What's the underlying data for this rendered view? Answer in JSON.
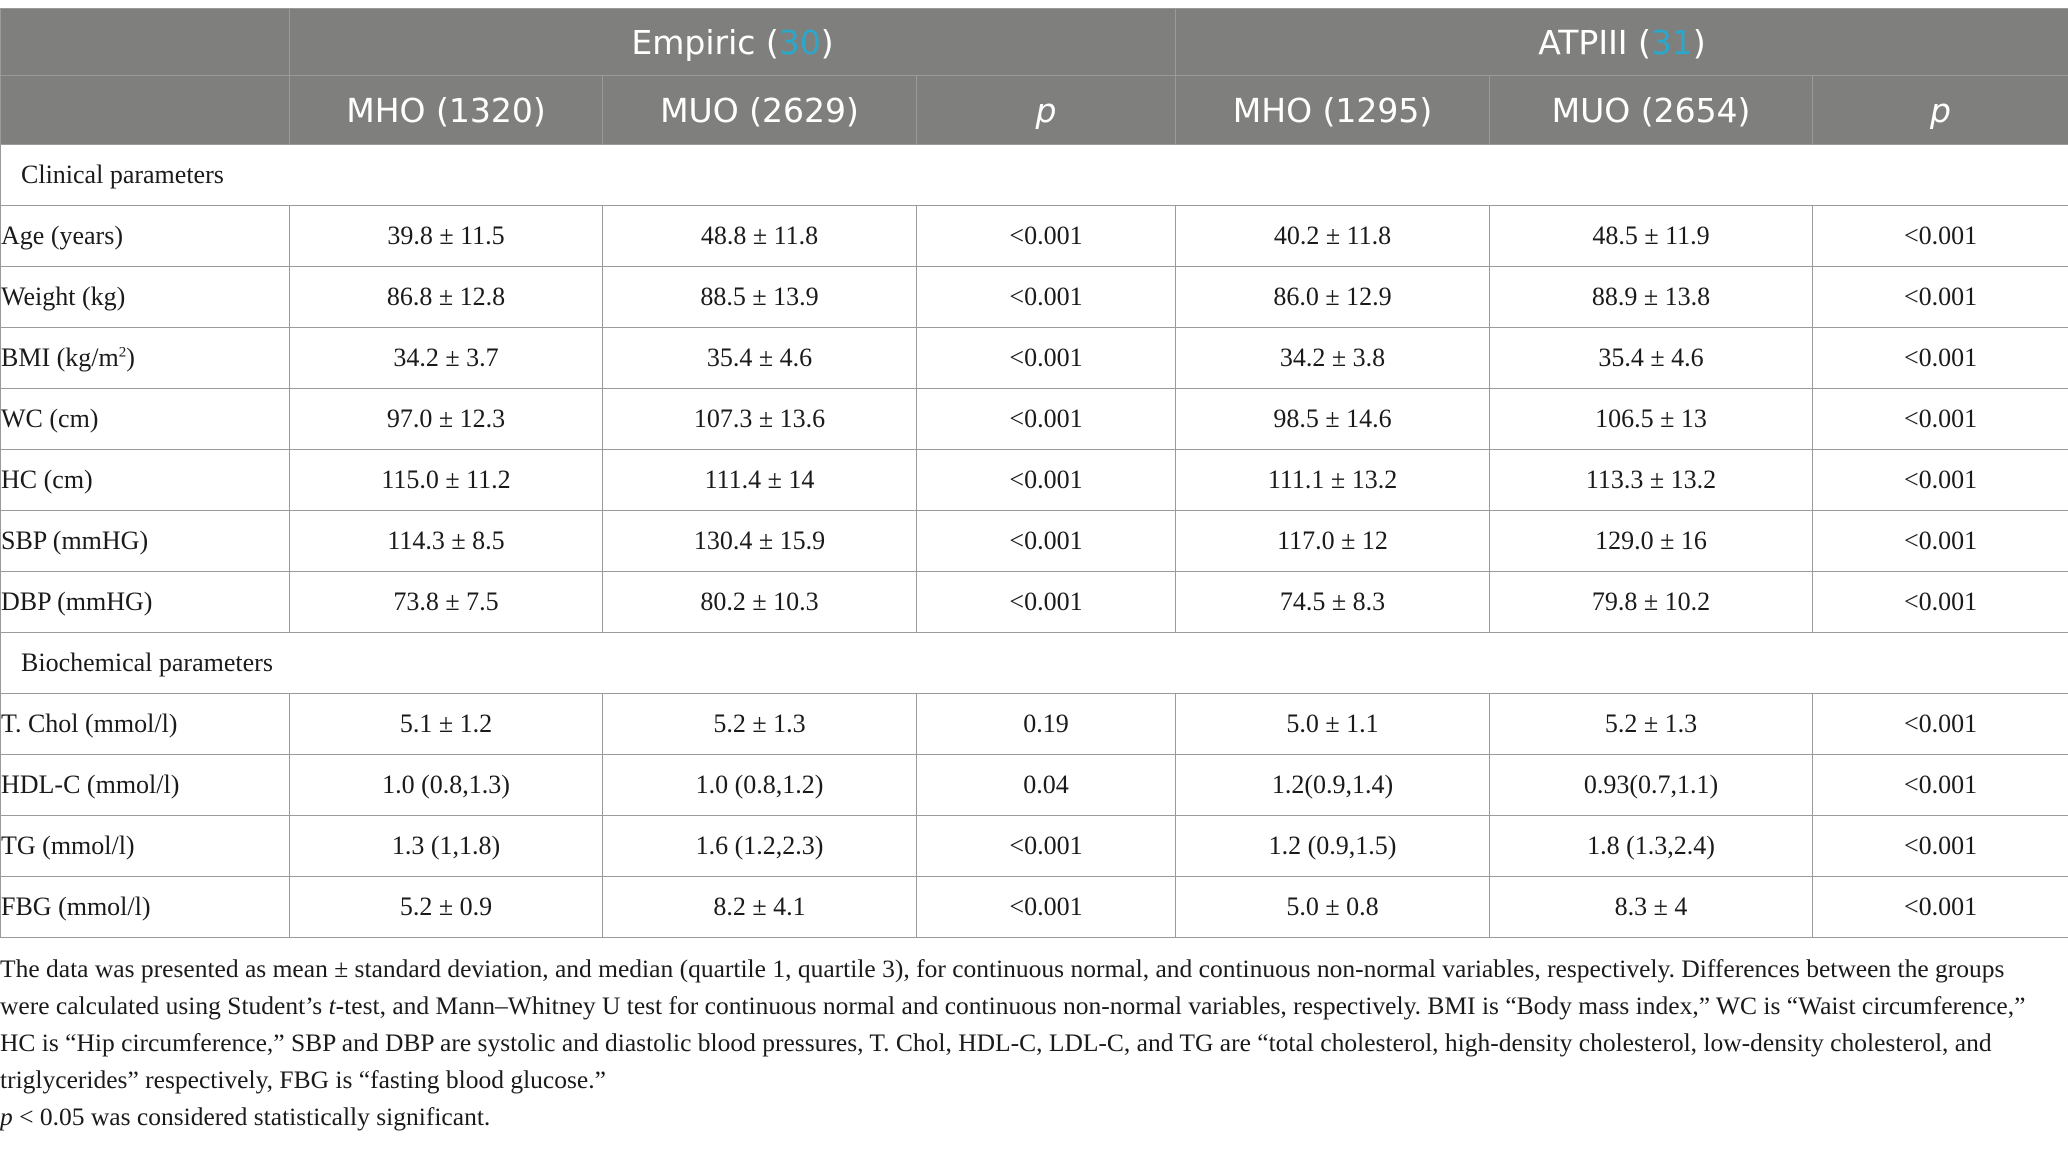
{
  "header": {
    "group1": {
      "name": "Empiric (",
      "ref": "30",
      "close": ")"
    },
    "group2": {
      "name": "ATPIII (",
      "ref": "31",
      "close": ")"
    },
    "subheaders": [
      "MHO (1320)",
      "MUO (2629)",
      "p",
      "MHO (1295)",
      "MUO (2654)",
      "p"
    ]
  },
  "sections": [
    {
      "title": "Clinical parameters",
      "rows": [
        {
          "label": "Age (years)",
          "cells": [
            "39.8 ± 11.5",
            "48.8 ± 11.8",
            "<0.001",
            "40.2 ± 11.8",
            "48.5 ± 11.9",
            "<0.001"
          ]
        },
        {
          "label": "Weight (kg)",
          "cells": [
            "86.8 ± 12.8",
            "88.5 ± 13.9",
            "<0.001",
            "86.0 ± 12.9",
            "88.9 ± 13.8",
            "<0.001"
          ]
        },
        {
          "label": "BMI (kg/m",
          "label_sup": "2",
          "label_after": ")",
          "cells": [
            "34.2 ± 3.7",
            "35.4 ± 4.6",
            "<0.001",
            "34.2 ± 3.8",
            "35.4 ± 4.6",
            "<0.001"
          ]
        },
        {
          "label": "WC (cm)",
          "cells": [
            "97.0 ± 12.3",
            "107.3 ± 13.6",
            "<0.001",
            "98.5 ± 14.6",
            "106.5 ± 13",
            "<0.001"
          ]
        },
        {
          "label": "HC (cm)",
          "cells": [
            "115.0 ± 11.2",
            "111.4 ± 14",
            "<0.001",
            "111.1 ± 13.2",
            "113.3 ± 13.2",
            "<0.001"
          ]
        },
        {
          "label": "SBP (mmHG)",
          "cells": [
            "114.3 ± 8.5",
            "130.4 ± 15.9",
            "<0.001",
            "117.0 ± 12",
            "129.0 ± 16",
            "<0.001"
          ]
        },
        {
          "label": "DBP (mmHG)",
          "cells": [
            "73.8 ± 7.5",
            "80.2 ± 10.3",
            "<0.001",
            "74.5 ± 8.3",
            "79.8 ± 10.2",
            "<0.001"
          ]
        }
      ]
    },
    {
      "title": "Biochemical parameters",
      "rows": [
        {
          "label": "T. Chol (mmol/l)",
          "cells": [
            "5.1 ± 1.2",
            "5.2 ± 1.3",
            "0.19",
            "5.0 ± 1.1",
            "5.2 ± 1.3",
            "<0.001"
          ]
        },
        {
          "label": "HDL-C (mmol/l)",
          "cells": [
            "1.0 (0.8,1.3)",
            "1.0 (0.8,1.2)",
            "0.04",
            "1.2(0.9,1.4)",
            "0.93(0.7,1.1)",
            "<0.001"
          ]
        },
        {
          "label": "TG (mmol/l)",
          "cells": [
            "1.3 (1,1.8)",
            "1.6 (1.2,2.3)",
            "<0.001",
            "1.2 (0.9,1.5)",
            "1.8 (1.3,2.4)",
            "<0.001"
          ]
        },
        {
          "label": "FBG (mmol/l)",
          "cells": [
            "5.2 ± 0.9",
            "8.2 ± 4.1",
            "<0.001",
            "5.0 ± 0.8",
            "8.3 ± 4",
            "<0.001"
          ]
        }
      ]
    }
  ],
  "footnote": {
    "part1": "The data was presented as mean ± standard deviation, and median (quartile 1, quartile 3), for continuous normal, and continuous non-normal variables, respectively. Differences between the groups were calculated using Student’s ",
    "t_italic": "t",
    "part2": "-test, and Mann–Whitney U test for continuous normal and continuous non-normal variables, respectively. BMI is “Body mass index,” WC is “Waist circumference,” HC is “Hip circumference,” SBP and DBP are systolic and diastolic blood pressures, T. Chol, HDL-C, LDL-C, and TG are “total cholesterol, high-density cholesterol, low-density cholesterol, and triglycerides” respectively, FBG is “fasting blood glucose.”",
    "p_italic": "p",
    "p_rest": " < 0.05 was considered statistically significant."
  }
}
